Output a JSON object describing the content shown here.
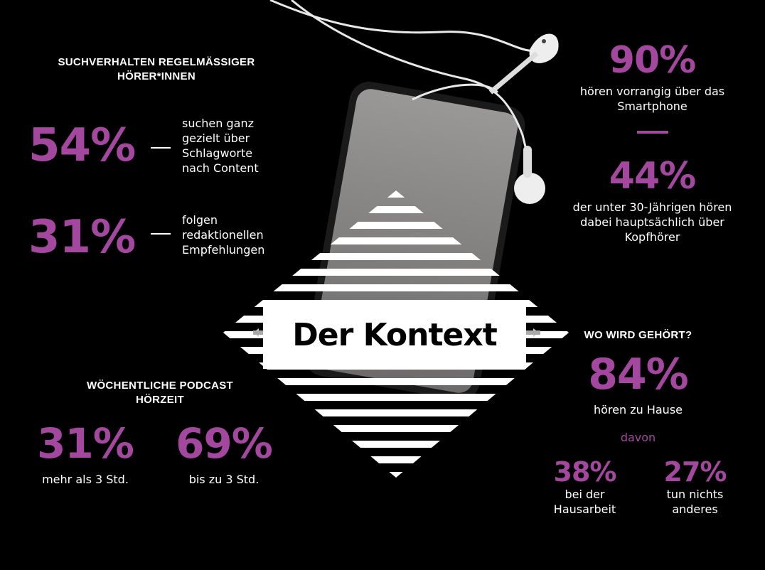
{
  "colors": {
    "accent": "#a4479f",
    "background": "#000000",
    "text": "#ffffff"
  },
  "title": "Der Kontext",
  "search": {
    "heading": "SUCHVERHALTEN REGELMÄSSIGER HÖRER*INNEN",
    "items": [
      {
        "value": "54%",
        "text": "suchen ganz gezielt über Schlagworte nach Content"
      },
      {
        "value": "31%",
        "text": "folgen redaktionellen Empfehlungen"
      }
    ]
  },
  "device": {
    "items": [
      {
        "value": "90%",
        "text": "hören vorrangig über das Smartphone"
      },
      {
        "value": "44%",
        "text": "der unter 30-Jährigen hören dabei hauptsächlich über Kopfhörer"
      }
    ]
  },
  "weekly": {
    "heading": "WÖCHENTLICHE PODCAST HÖRZEIT",
    "items": [
      {
        "value": "31%",
        "text": "mehr als 3 Std."
      },
      {
        "value": "69%",
        "text": "bis zu 3 Std."
      }
    ]
  },
  "where": {
    "heading": "WO WIRD GEHÖRT?",
    "main": {
      "value": "84%",
      "text": "hören zu Hause"
    },
    "of_which": "davon",
    "items": [
      {
        "value": "38%",
        "text": "bei der Hausarbeit"
      },
      {
        "value": "27%",
        "text": "tun nichts anderes"
      }
    ]
  }
}
